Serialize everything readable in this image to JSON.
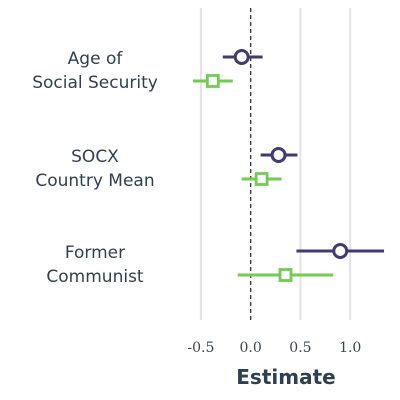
{
  "chart_data": {
    "type": "scatter",
    "subtype": "coefficient-plot",
    "title": "",
    "xlabel": "Estimate",
    "ylabel": "",
    "xlim": [
      -0.73,
      1.42
    ],
    "xticks": [
      -0.5,
      0.0,
      0.5,
      1.0
    ],
    "xtick_labels": [
      "-0.5",
      "0.0",
      "0.5",
      "1.0"
    ],
    "reference_line": 0,
    "grid": "vertical",
    "legend": "none",
    "categories": [
      {
        "lines": [
          "Age of",
          "Social Security"
        ]
      },
      {
        "lines": [
          "SOCX",
          "Country Mean"
        ]
      },
      {
        "lines": [
          "Former",
          "Communist"
        ]
      }
    ],
    "series": [
      {
        "color": "#433a73",
        "marker": "circle",
        "estimates": [
          -0.09,
          0.28,
          0.9
        ],
        "lower": [
          -0.28,
          0.1,
          0.46
        ],
        "upper": [
          0.12,
          0.47,
          1.34
        ]
      },
      {
        "color": "#72cc52",
        "marker": "square",
        "estimates": [
          -0.38,
          0.11,
          0.35
        ],
        "lower": [
          -0.58,
          -0.09,
          -0.13
        ],
        "upper": [
          -0.18,
          0.31,
          0.83
        ]
      }
    ]
  }
}
